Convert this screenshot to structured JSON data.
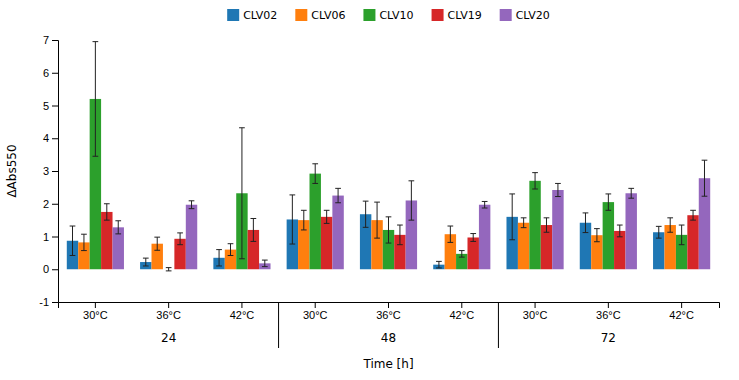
{
  "chart_data": {
    "type": "bar",
    "xlabel": "Time [h]",
    "ylabel": "ΔAbs550",
    "categories": [
      "30°C",
      "36°C",
      "42°C",
      "30°C",
      "36°C",
      "42°C",
      "30°C",
      "36°C",
      "42°C"
    ],
    "time_labels": [
      "24",
      "48",
      "72"
    ],
    "series": [
      {
        "name": "CLV02",
        "values": [
          0.87,
          0.22,
          0.35,
          1.52,
          1.68,
          0.14,
          1.6,
          1.42,
          1.13
        ],
        "errors": [
          0.45,
          0.12,
          0.25,
          0.75,
          0.4,
          0.1,
          0.7,
          0.3,
          0.18
        ]
      },
      {
        "name": "CLV06",
        "values": [
          0.82,
          0.78,
          0.6,
          1.5,
          1.5,
          1.07,
          1.42,
          1.04,
          1.35
        ],
        "errors": [
          0.25,
          0.2,
          0.18,
          0.3,
          0.55,
          0.25,
          0.15,
          0.2,
          0.22
        ]
      },
      {
        "name": "CLV10",
        "values": [
          5.2,
          0.0,
          2.32,
          2.92,
          1.2,
          0.47,
          2.7,
          2.05,
          1.05
        ],
        "errors": [
          1.75,
          0.05,
          2.0,
          0.3,
          0.4,
          0.1,
          0.25,
          0.25,
          0.3
        ]
      },
      {
        "name": "CLV19",
        "values": [
          1.75,
          0.93,
          1.2,
          1.6,
          1.05,
          0.97,
          1.35,
          1.17,
          1.65
        ],
        "errors": [
          0.25,
          0.18,
          0.35,
          0.2,
          0.3,
          0.12,
          0.22,
          0.18,
          0.15
        ]
      },
      {
        "name": "CLV20",
        "values": [
          1.28,
          1.97,
          0.18,
          2.25,
          2.1,
          1.97,
          2.42,
          2.32,
          2.78
        ],
        "errors": [
          0.2,
          0.12,
          0.1,
          0.22,
          0.6,
          0.1,
          0.2,
          0.15,
          0.55
        ]
      }
    ],
    "ylim": [
      -1,
      7
    ],
    "yticks": [
      -1,
      0,
      1,
      2,
      3,
      4,
      5,
      6,
      7
    ],
    "grid": false,
    "legend": "top"
  }
}
